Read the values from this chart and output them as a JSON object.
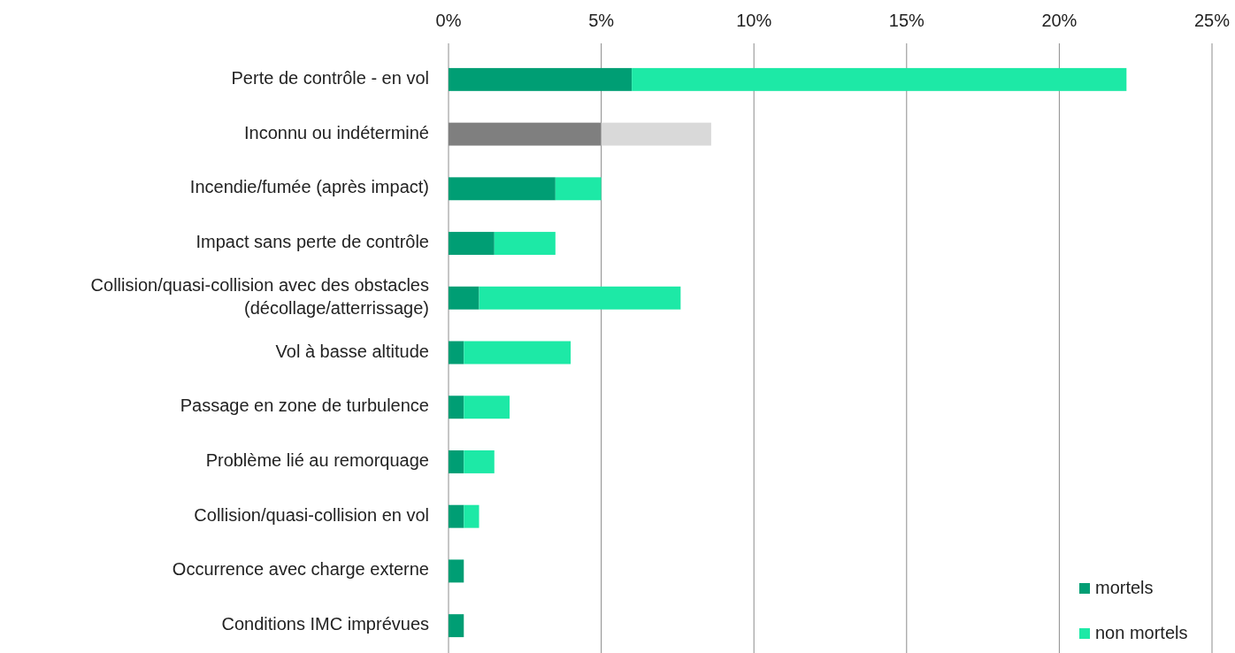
{
  "chart_data": {
    "type": "bar",
    "orientation": "horizontal",
    "stacked": true,
    "categories": [
      "Perte de contrôle - en vol",
      "Inconnu ou indéterminé",
      "Incendie/fumée (après impact)",
      "Impact sans perte de contrôle",
      "Collision/quasi-collision avec des obstacles (décollage/atterrissage)",
      "Vol à basse altitude",
      "Passage en zone de turbulence",
      "Problème lié au remorquage",
      "Collision/quasi-collision en vol",
      "Occurrence avec charge externe",
      "Conditions IMC imprévues"
    ],
    "series": [
      {
        "name": "mortels",
        "color": "#009e74",
        "colors": [
          "#009e74",
          "#7f7f7f",
          "#009e74",
          "#009e74",
          "#009e74",
          "#009e74",
          "#009e74",
          "#009e74",
          "#009e74",
          "#009e74",
          "#009e74"
        ],
        "values": [
          6.0,
          5.0,
          3.5,
          1.5,
          1.0,
          0.5,
          0.5,
          0.5,
          0.5,
          0.5,
          0.5
        ]
      },
      {
        "name": "non mortels",
        "color": "#1de9a6",
        "colors": [
          "#1de9a6",
          "#d9d9d9",
          "#1de9a6",
          "#1de9a6",
          "#1de9a6",
          "#1de9a6",
          "#1de9a6",
          "#1de9a6",
          "#1de9a6",
          "#1de9a6",
          "#1de9a6"
        ],
        "values": [
          16.2,
          3.6,
          1.5,
          2.0,
          6.6,
          3.5,
          1.5,
          1.0,
          0.5,
          0,
          0
        ]
      }
    ],
    "xlim": [
      0,
      25
    ],
    "xticks": [
      {
        "value": 0,
        "label": "0%"
      },
      {
        "value": 5,
        "label": "5%"
      },
      {
        "value": 10,
        "label": "10%"
      },
      {
        "value": 15,
        "label": "15%"
      },
      {
        "value": 20,
        "label": "20%"
      },
      {
        "value": 25,
        "label": "25%"
      }
    ],
    "grid": "x",
    "legend": "bottom right"
  }
}
